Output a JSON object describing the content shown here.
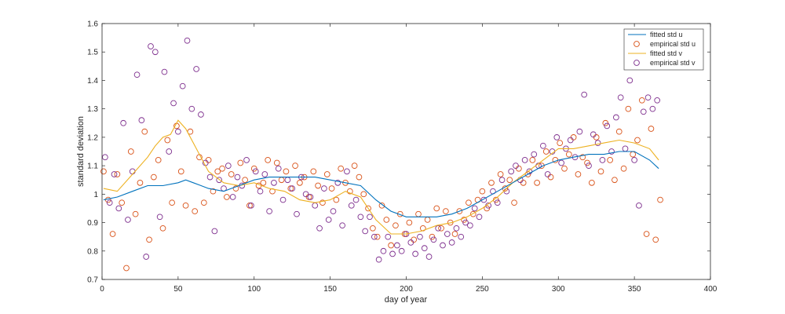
{
  "chart_data": {
    "type": "scatter",
    "title": "",
    "xlabel": "day of year",
    "ylabel": "standard deviation",
    "xlim": [
      0,
      400
    ],
    "ylim": [
      0.7,
      1.6
    ],
    "xticks": [
      "0",
      "50",
      "100",
      "150",
      "200",
      "250",
      "300",
      "350",
      "400"
    ],
    "yticks": [
      "0.7",
      "0.8",
      "0.9",
      "1",
      "1.1",
      "1.2",
      "1.3",
      "1.4",
      "1.5",
      "1.6"
    ],
    "legend_position": "top-right",
    "colors": {
      "fitted_u": "#0072bd",
      "empirical_u": "#d95319",
      "fitted_v": "#edb120",
      "empirical_v": "#7e2f8e",
      "axis": "#262626"
    },
    "series": [
      {
        "name": "fitted std u",
        "kind": "line",
        "x": [
          1,
          10,
          20,
          30,
          40,
          50,
          55,
          60,
          70,
          80,
          90,
          100,
          110,
          120,
          130,
          140,
          150,
          160,
          170,
          180,
          190,
          200,
          210,
          220,
          230,
          240,
          250,
          260,
          270,
          280,
          290,
          300,
          310,
          320,
          330,
          340,
          350,
          360,
          366
        ],
        "values": [
          0.98,
          0.99,
          1.01,
          1.03,
          1.03,
          1.04,
          1.05,
          1.04,
          1.02,
          1.01,
          1.03,
          1.05,
          1.06,
          1.06,
          1.06,
          1.06,
          1.05,
          1.04,
          1.03,
          0.98,
          0.94,
          0.92,
          0.92,
          0.92,
          0.93,
          0.95,
          0.98,
          1.01,
          1.04,
          1.07,
          1.1,
          1.12,
          1.13,
          1.14,
          1.14,
          1.15,
          1.15,
          1.12,
          1.09
        ]
      },
      {
        "name": "empirical std u",
        "kind": "scatter",
        "x": [
          1,
          4,
          7,
          10,
          13,
          16,
          19,
          22,
          25,
          28,
          31,
          34,
          37,
          40,
          43,
          46,
          49,
          52,
          55,
          58,
          61,
          64,
          67,
          70,
          73,
          76,
          79,
          82,
          85,
          88,
          91,
          94,
          97,
          100,
          103,
          106,
          109,
          112,
          115,
          118,
          121,
          124,
          127,
          130,
          133,
          136,
          139,
          142,
          145,
          148,
          151,
          154,
          157,
          160,
          163,
          166,
          169,
          172,
          175,
          178,
          181,
          184,
          187,
          190,
          193,
          196,
          199,
          202,
          205,
          208,
          211,
          214,
          217,
          220,
          223,
          226,
          229,
          232,
          235,
          238,
          241,
          244,
          247,
          250,
          253,
          256,
          259,
          262,
          265,
          268,
          271,
          274,
          277,
          280,
          283,
          286,
          289,
          292,
          295,
          298,
          301,
          304,
          307,
          310,
          313,
          316,
          319,
          322,
          325,
          328,
          331,
          334,
          337,
          340,
          343,
          346,
          349,
          352,
          355,
          358,
          361,
          364,
          367
        ],
        "values": [
          1.08,
          0.98,
          0.86,
          1.07,
          0.97,
          0.74,
          1.15,
          0.93,
          1.04,
          1.22,
          0.84,
          1.06,
          1.12,
          0.88,
          1.19,
          0.97,
          1.24,
          1.08,
          0.96,
          1.22,
          0.94,
          1.13,
          0.97,
          1.12,
          1.01,
          1.08,
          1.09,
          0.99,
          1.07,
          1.02,
          1.11,
          1.05,
          0.96,
          1.09,
          1.03,
          1.04,
          1.12,
          1.01,
          1.11,
          1.05,
          1.08,
          1.02,
          1.1,
          1.04,
          1.06,
          0.99,
          1.08,
          1.03,
          0.97,
          1.07,
          1.02,
          0.98,
          1.09,
          1.04,
          1.01,
          1.1,
          1.06,
          1.0,
          0.95,
          0.88,
          0.85,
          0.96,
          0.91,
          0.82,
          0.89,
          0.93,
          0.86,
          0.9,
          0.84,
          0.93,
          0.88,
          0.91,
          0.85,
          0.95,
          0.88,
          0.94,
          0.9,
          0.86,
          0.94,
          0.91,
          0.97,
          0.93,
          0.98,
          1.01,
          0.95,
          1.04,
          0.98,
          1.07,
          1.02,
          1.05,
          0.97,
          1.09,
          1.04,
          1.07,
          1.12,
          1.04,
          1.1,
          1.15,
          1.06,
          1.12,
          1.18,
          1.09,
          1.14,
          1.2,
          1.07,
          1.13,
          1.11,
          1.04,
          1.2,
          1.08,
          1.25,
          1.12,
          1.05,
          1.22,
          1.09,
          1.3,
          1.14,
          1.19,
          1.33,
          0.86,
          1.23,
          0.84,
          0.98
        ]
      },
      {
        "name": "fitted std v",
        "kind": "line",
        "x": [
          1,
          10,
          20,
          30,
          35,
          40,
          45,
          50,
          55,
          60,
          65,
          70,
          80,
          90,
          100,
          110,
          120,
          130,
          140,
          150,
          160,
          170,
          180,
          190,
          200,
          210,
          220,
          230,
          240,
          250,
          260,
          270,
          280,
          290,
          300,
          310,
          320,
          330,
          340,
          350,
          360,
          366
        ],
        "values": [
          1.02,
          1.01,
          1.07,
          1.13,
          1.17,
          1.2,
          1.21,
          1.26,
          1.23,
          1.18,
          1.13,
          1.08,
          1.04,
          1.03,
          1.04,
          1.02,
          1.01,
          0.98,
          0.97,
          0.98,
          1.01,
          0.99,
          0.91,
          0.86,
          0.86,
          0.87,
          0.89,
          0.9,
          0.92,
          0.95,
          0.99,
          1.04,
          1.08,
          1.12,
          1.16,
          1.16,
          1.17,
          1.18,
          1.19,
          1.18,
          1.16,
          1.12
        ]
      },
      {
        "name": "empirical std v",
        "kind": "scatter",
        "x": [
          2,
          5,
          8,
          11,
          14,
          17,
          20,
          23,
          26,
          29,
          32,
          35,
          38,
          41,
          44,
          47,
          50,
          53,
          56,
          59,
          62,
          65,
          68,
          71,
          74,
          77,
          80,
          83,
          86,
          89,
          92,
          95,
          98,
          101,
          104,
          107,
          110,
          113,
          116,
          119,
          122,
          125,
          128,
          131,
          134,
          137,
          140,
          143,
          146,
          149,
          152,
          155,
          158,
          161,
          164,
          167,
          170,
          173,
          176,
          179,
          182,
          185,
          188,
          191,
          194,
          197,
          200,
          203,
          206,
          209,
          212,
          215,
          218,
          221,
          224,
          227,
          230,
          233,
          236,
          239,
          242,
          245,
          248,
          251,
          254,
          257,
          260,
          263,
          266,
          269,
          272,
          275,
          278,
          281,
          284,
          287,
          290,
          293,
          296,
          299,
          302,
          305,
          308,
          311,
          314,
          317,
          320,
          323,
          326,
          329,
          332,
          335,
          338,
          341,
          344,
          347,
          350,
          353,
          356,
          359,
          362,
          365
        ],
        "values": [
          1.13,
          0.97,
          1.07,
          0.95,
          1.25,
          0.91,
          1.08,
          1.42,
          1.26,
          0.78,
          1.52,
          1.5,
          0.92,
          1.43,
          1.15,
          1.32,
          1.22,
          1.38,
          1.54,
          1.3,
          1.44,
          1.28,
          1.11,
          1.06,
          0.87,
          1.05,
          1.02,
          1.1,
          0.99,
          1.06,
          1.03,
          1.12,
          0.96,
          1.08,
          1.01,
          1.07,
          0.94,
          1.04,
          1.09,
          0.98,
          1.05,
          1.02,
          0.93,
          1.06,
          1.0,
          0.99,
          0.96,
          0.88,
          1.02,
          0.91,
          0.94,
          1.04,
          0.89,
          1.08,
          0.96,
          0.98,
          0.92,
          0.87,
          0.92,
          0.85,
          0.77,
          0.8,
          0.85,
          0.79,
          0.82,
          0.8,
          0.86,
          0.83,
          0.79,
          0.85,
          0.81,
          0.78,
          0.84,
          0.88,
          0.82,
          0.86,
          0.83,
          0.88,
          0.85,
          0.9,
          0.89,
          0.95,
          0.92,
          0.98,
          0.96,
          1.01,
          0.97,
          1.05,
          1.01,
          1.08,
          1.1,
          1.05,
          1.12,
          1.08,
          1.14,
          1.1,
          1.17,
          1.07,
          1.15,
          1.2,
          1.11,
          1.16,
          1.19,
          1.13,
          1.22,
          1.35,
          1.1,
          1.21,
          1.18,
          1.12,
          1.24,
          1.15,
          1.27,
          1.34,
          1.16,
          1.4,
          1.12,
          0.96,
          1.29,
          1.34,
          1.3,
          1.33
        ]
      }
    ]
  }
}
